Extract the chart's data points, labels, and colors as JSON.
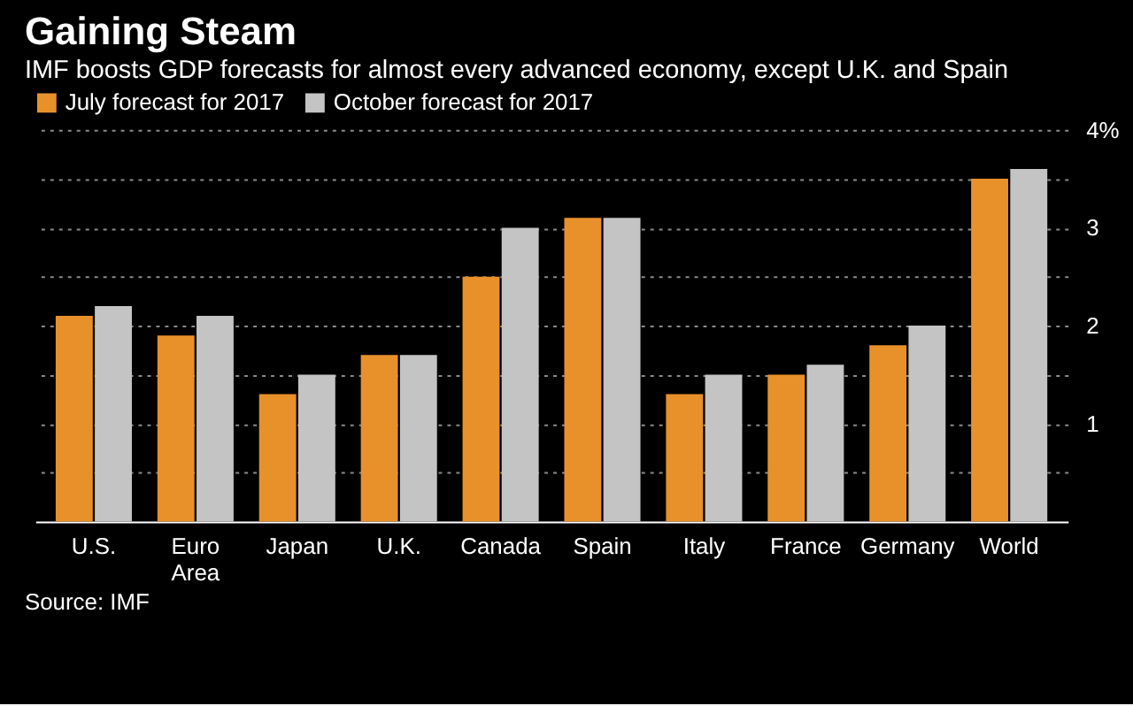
{
  "chart_data": {
    "type": "bar",
    "title": "Gaining Steam",
    "subtitle": "IMF boosts GDP forecasts for almost every advanced economy, except U.K. and Spain",
    "categories": [
      "U.S.",
      "Euro Area",
      "Japan",
      "U.K.",
      "Canada",
      "Spain",
      "Italy",
      "France",
      "Germany",
      "World"
    ],
    "series": [
      {
        "name": "July forecast for 2017",
        "color": "#e8912a",
        "values": [
          2.1,
          1.9,
          1.3,
          1.7,
          2.5,
          3.1,
          1.3,
          1.5,
          1.8,
          3.5
        ]
      },
      {
        "name": "October forecast for 2017",
        "color": "#c4c4c4",
        "values": [
          2.2,
          2.1,
          1.5,
          1.7,
          3.0,
          3.1,
          1.5,
          1.6,
          2.0,
          3.6
        ]
      }
    ],
    "ylim": [
      0,
      4
    ],
    "yticks": [
      {
        "value": 0.5,
        "label": null
      },
      1,
      {
        "value": 1.5,
        "label": null
      },
      2,
      {
        "value": 2.5,
        "label": null
      },
      3,
      {
        "value": 3.5,
        "label": null
      },
      {
        "value": 4,
        "label": "4%"
      }
    ],
    "grid": "y",
    "legend": "top left",
    "annotations": [
      "Source: IMF"
    ]
  }
}
